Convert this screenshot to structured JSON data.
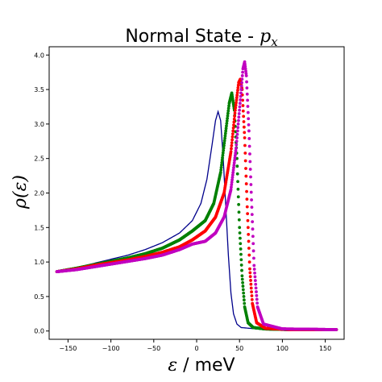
{
  "chart_data": {
    "type": "scatter",
    "title": "Normal State - ",
    "title_math": "p",
    "title_math_sub": "x",
    "xlabel_math": "ε",
    "xlabel_unit": " / meV",
    "ylabel_math": "ρ(ε)",
    "xlim": [
      -172,
      172
    ],
    "ylim": [
      -0.12,
      4.12
    ],
    "xticks": [
      -150,
      -100,
      -50,
      0,
      50,
      100,
      150
    ],
    "xtick_labels": [
      "−150",
      "−100",
      "−50",
      "0",
      "50",
      "100",
      "150"
    ],
    "yticks": [
      0.0,
      0.5,
      1.0,
      1.5,
      2.0,
      2.5,
      3.0,
      3.5,
      4.0
    ],
    "ytick_labels": [
      "0.0",
      "0.5",
      "1.0",
      "1.5",
      "2.0",
      "2.5",
      "3.0",
      "3.5",
      "4.0"
    ],
    "grid": false,
    "series": [
      {
        "color": "#00008b",
        "style": "line",
        "points": [
          [
            -163,
            0.86
          ],
          [
            -140,
            0.92
          ],
          [
            -120,
            0.98
          ],
          [
            -100,
            1.04
          ],
          [
            -80,
            1.1
          ],
          [
            -60,
            1.18
          ],
          [
            -40,
            1.28
          ],
          [
            -20,
            1.42
          ],
          [
            -5,
            1.6
          ],
          [
            5,
            1.85
          ],
          [
            12,
            2.2
          ],
          [
            18,
            2.7
          ],
          [
            22,
            3.05
          ],
          [
            25,
            3.18
          ],
          [
            28,
            3.05
          ],
          [
            31,
            2.5
          ],
          [
            34,
            1.8
          ],
          [
            37,
            1.1
          ],
          [
            40,
            0.55
          ],
          [
            43,
            0.25
          ],
          [
            47,
            0.1
          ],
          [
            52,
            0.05
          ],
          [
            70,
            0.03
          ],
          [
            100,
            0.02
          ],
          [
            163,
            0.02
          ]
        ]
      },
      {
        "color": "#008000",
        "style": "dots",
        "points": [
          [
            -163,
            0.86
          ],
          [
            -140,
            0.91
          ],
          [
            -120,
            0.96
          ],
          [
            -100,
            1.01
          ],
          [
            -80,
            1.06
          ],
          [
            -60,
            1.12
          ],
          [
            -40,
            1.2
          ],
          [
            -20,
            1.32
          ],
          [
            -5,
            1.45
          ],
          [
            10,
            1.6
          ],
          [
            20,
            1.85
          ],
          [
            28,
            2.3
          ],
          [
            34,
            2.9
          ],
          [
            38,
            3.3
          ],
          [
            41,
            3.45
          ],
          [
            44,
            3.2
          ],
          [
            47,
            2.5
          ],
          [
            50,
            1.5
          ],
          [
            53,
            0.8
          ],
          [
            56,
            0.35
          ],
          [
            60,
            0.12
          ],
          [
            66,
            0.05
          ],
          [
            80,
            0.03
          ],
          [
            110,
            0.02
          ],
          [
            163,
            0.02
          ]
        ]
      },
      {
        "color": "#ff0000",
        "style": "dots",
        "points": [
          [
            -163,
            0.86
          ],
          [
            -140,
            0.9
          ],
          [
            -120,
            0.95
          ],
          [
            -100,
            0.99
          ],
          [
            -80,
            1.03
          ],
          [
            -60,
            1.08
          ],
          [
            -40,
            1.14
          ],
          [
            -20,
            1.22
          ],
          [
            -5,
            1.32
          ],
          [
            10,
            1.45
          ],
          [
            22,
            1.65
          ],
          [
            32,
            2.0
          ],
          [
            40,
            2.6
          ],
          [
            45,
            3.2
          ],
          [
            49,
            3.6
          ],
          [
            51,
            3.65
          ],
          [
            53,
            3.5
          ],
          [
            56,
            2.8
          ],
          [
            59,
            1.8
          ],
          [
            62,
            0.9
          ],
          [
            65,
            0.4
          ],
          [
            70,
            0.12
          ],
          [
            80,
            0.04
          ],
          [
            110,
            0.02
          ],
          [
            163,
            0.02
          ]
        ]
      },
      {
        "color": "#c000c0",
        "style": "dots",
        "points": [
          [
            -163,
            0.86
          ],
          [
            -140,
            0.89
          ],
          [
            -120,
            0.93
          ],
          [
            -100,
            0.97
          ],
          [
            -80,
            1.01
          ],
          [
            -60,
            1.05
          ],
          [
            -40,
            1.1
          ],
          [
            -20,
            1.18
          ],
          [
            -5,
            1.26
          ],
          [
            10,
            1.3
          ],
          [
            22,
            1.42
          ],
          [
            32,
            1.65
          ],
          [
            40,
            2.05
          ],
          [
            46,
            2.65
          ],
          [
            51,
            3.35
          ],
          [
            54,
            3.8
          ],
          [
            56,
            3.9
          ],
          [
            58,
            3.7
          ],
          [
            61,
            2.9
          ],
          [
            64,
            1.9
          ],
          [
            67,
            0.95
          ],
          [
            71,
            0.35
          ],
          [
            78,
            0.1
          ],
          [
            100,
            0.03
          ],
          [
            163,
            0.02
          ]
        ]
      }
    ]
  }
}
